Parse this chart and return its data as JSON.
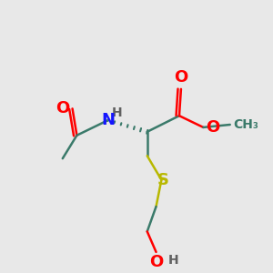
{
  "bg_color": "#e8e8e8",
  "bond_color": "#3a7a6a",
  "colors": {
    "O": "#ff0000",
    "N": "#1515ff",
    "S": "#b8b800",
    "H": "#606060",
    "C": "#3a7a6a"
  },
  "figsize": [
    3.0,
    3.0
  ],
  "dpi": 100
}
